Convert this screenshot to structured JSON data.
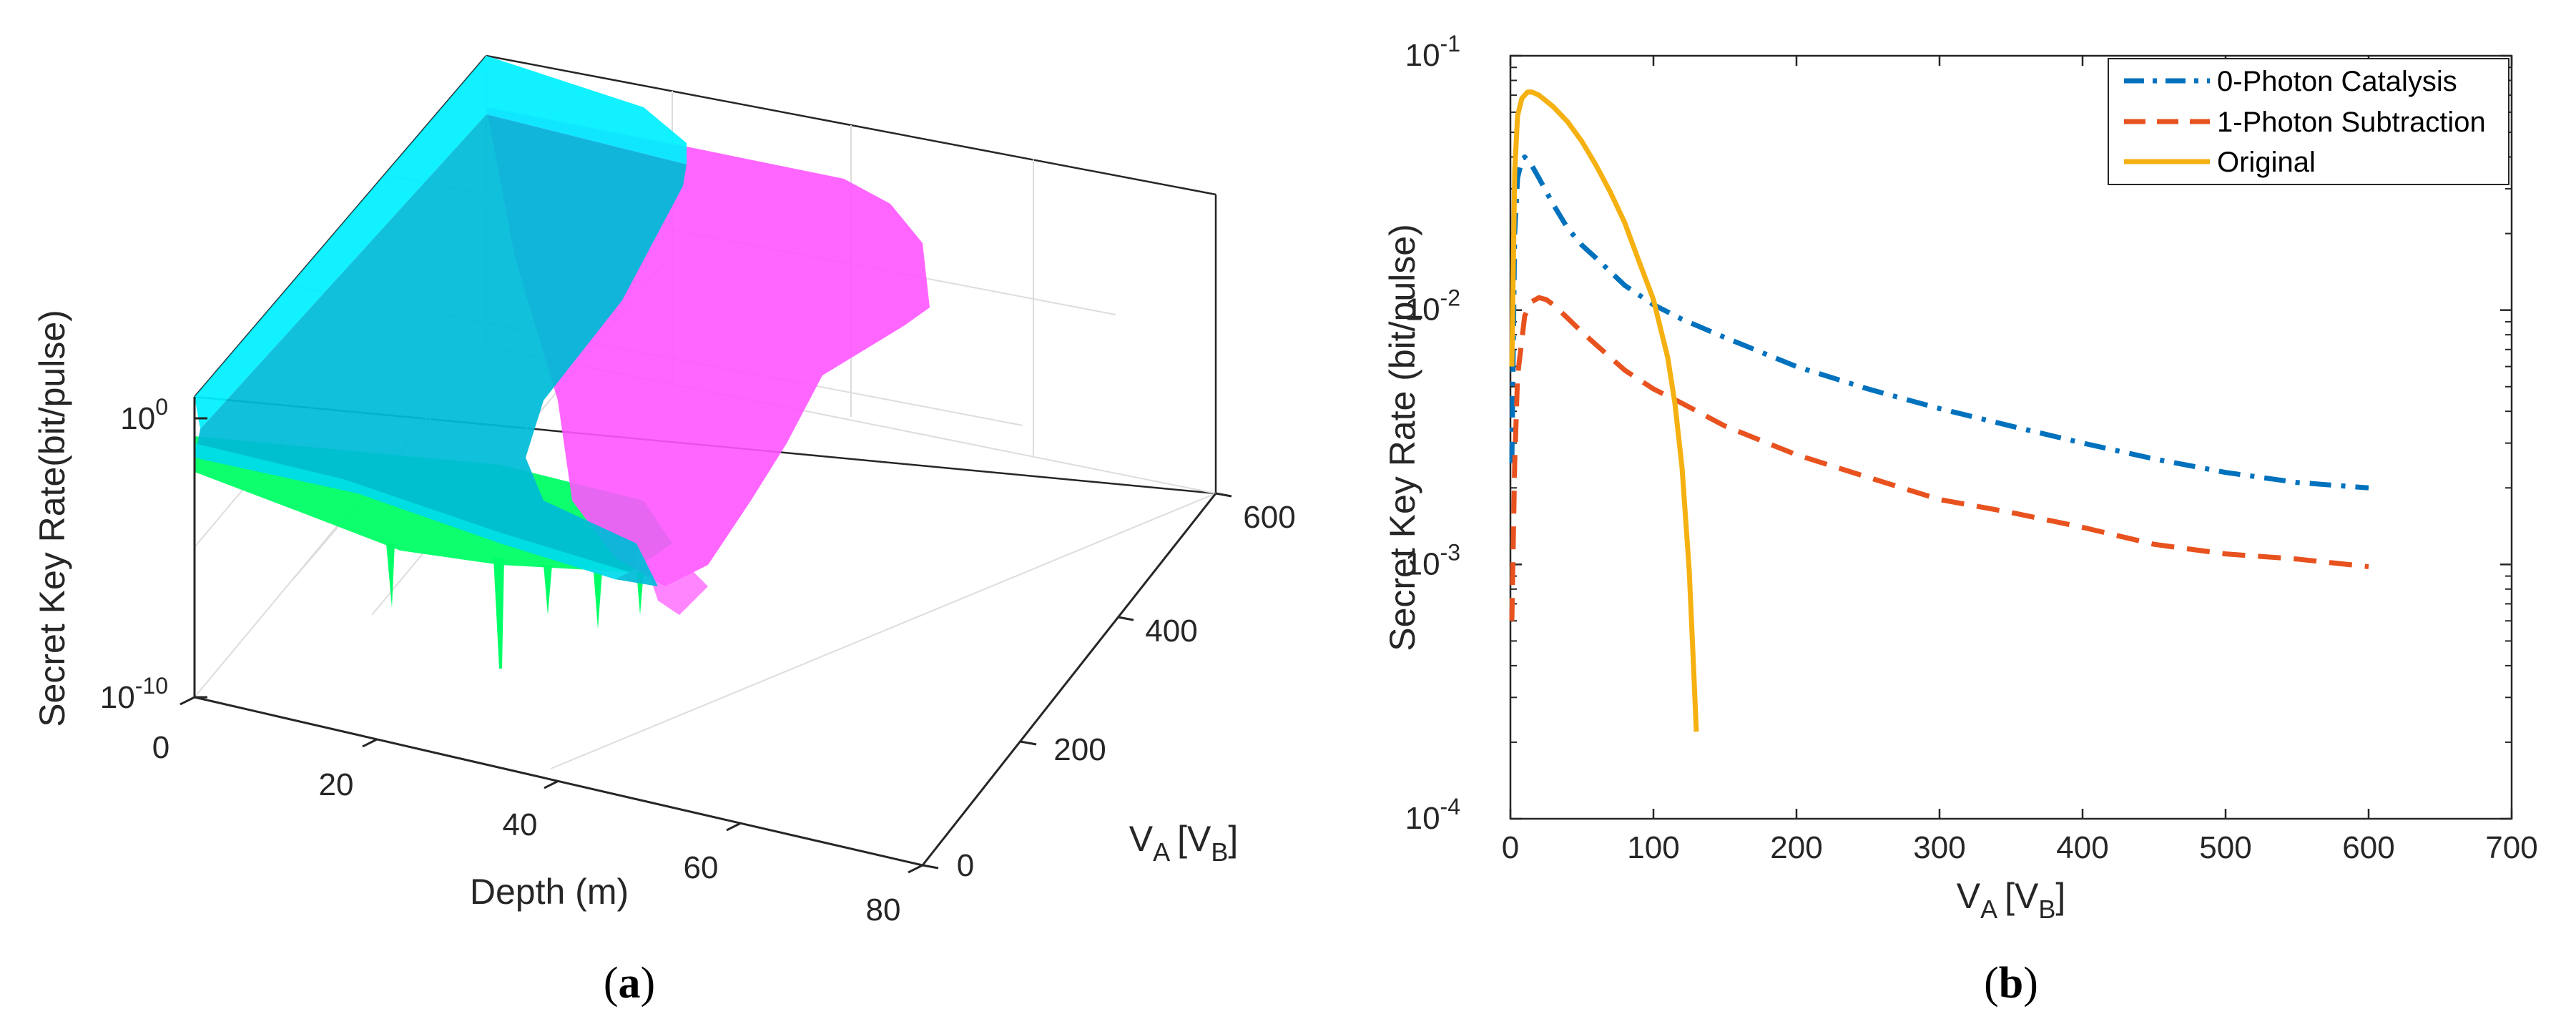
{
  "chart_data": [
    {
      "panel": "a",
      "caption_letter": "a",
      "type": "surface3d",
      "xlabel": "Depth (m)",
      "ylabel_main": "V",
      "ylabel_sub": "A",
      "ylabel_bracket": "[V",
      "ylabel_bracket_sub": "B",
      "ylabel_close": "]",
      "zlabel": "Secret Key Rate(bit/pulse)",
      "x_ticks": [
        "0",
        "20",
        "40",
        "60",
        "80"
      ],
      "y_ticks": [
        "0",
        "200",
        "400",
        "600"
      ],
      "z_ticks": [
        {
          "base": "10",
          "exp": "0"
        },
        {
          "base": "10",
          "exp": "-10"
        }
      ],
      "xlim": [
        0,
        80
      ],
      "ylim": [
        0,
        600
      ],
      "surfaces": [
        {
          "name": "green",
          "color": "#00ff66"
        },
        {
          "name": "magenta",
          "color": "#ff33ff"
        },
        {
          "name": "cyan",
          "color": "#00e5f5"
        }
      ]
    },
    {
      "panel": "b",
      "caption_letter": "b",
      "type": "line",
      "yscale": "log",
      "xlabel_main": "V",
      "xlabel_sub": "A",
      "xlabel_bracket": "[V",
      "xlabel_bracket_sub": "B",
      "xlabel_close": "]",
      "ylabel": "Secret Key Rate (bit/pulse)",
      "xlim": [
        0,
        700
      ],
      "ylim": [
        0.0001,
        0.1
      ],
      "x_ticks": [
        "0",
        "100",
        "200",
        "300",
        "400",
        "500",
        "600",
        "700"
      ],
      "y_ticks": [
        {
          "base": "10",
          "exp": "-4",
          "value": 0.0001
        },
        {
          "base": "10",
          "exp": "-3",
          "value": 0.001
        },
        {
          "base": "10",
          "exp": "-2",
          "value": 0.01
        },
        {
          "base": "10",
          "exp": "-1",
          "value": 0.1
        }
      ],
      "legend_position": "top-right",
      "series": [
        {
          "name": "0-Photon Catalysis",
          "color": "#0072bd",
          "style": "dashdot",
          "x": [
            1,
            3,
            5,
            8,
            10,
            15,
            20,
            30,
            40,
            50,
            60,
            80,
            100,
            120,
            150,
            200,
            250,
            300,
            350,
            400,
            450,
            500,
            550,
            600
          ],
          "y": [
            0.0025,
            0.02,
            0.033,
            0.039,
            0.04,
            0.037,
            0.033,
            0.026,
            0.021,
            0.018,
            0.016,
            0.0125,
            0.0105,
            0.0092,
            0.0078,
            0.006,
            0.0049,
            0.0041,
            0.0035,
            0.003,
            0.0026,
            0.0023,
            0.0021,
            0.002
          ]
        },
        {
          "name": "1-Photon Subtraction",
          "color": "#e8521f",
          "style": "dashed",
          "x": [
            1,
            3,
            5,
            10,
            15,
            20,
            25,
            30,
            40,
            50,
            60,
            80,
            100,
            120,
            150,
            200,
            250,
            300,
            350,
            400,
            450,
            500,
            550,
            600
          ],
          "y": [
            0.0006,
            0.0025,
            0.0055,
            0.0095,
            0.0108,
            0.0112,
            0.011,
            0.0105,
            0.0093,
            0.0082,
            0.0073,
            0.0058,
            0.0049,
            0.0043,
            0.0035,
            0.0027,
            0.0022,
            0.0018,
            0.0016,
            0.0014,
            0.0012,
            0.0011,
            0.00105,
            0.00098
          ]
        },
        {
          "name": "Original",
          "color": "#f5b111",
          "style": "solid",
          "x": [
            1,
            3,
            5,
            8,
            12,
            15,
            20,
            30,
            40,
            50,
            60,
            70,
            80,
            90,
            100,
            110,
            115,
            120,
            125,
            128,
            130
          ],
          "y": [
            0.006,
            0.035,
            0.058,
            0.068,
            0.072,
            0.072,
            0.07,
            0.063,
            0.055,
            0.046,
            0.037,
            0.029,
            0.022,
            0.0155,
            0.011,
            0.0065,
            0.0043,
            0.0024,
            0.00095,
            0.0004,
            0.00022
          ]
        }
      ]
    }
  ]
}
